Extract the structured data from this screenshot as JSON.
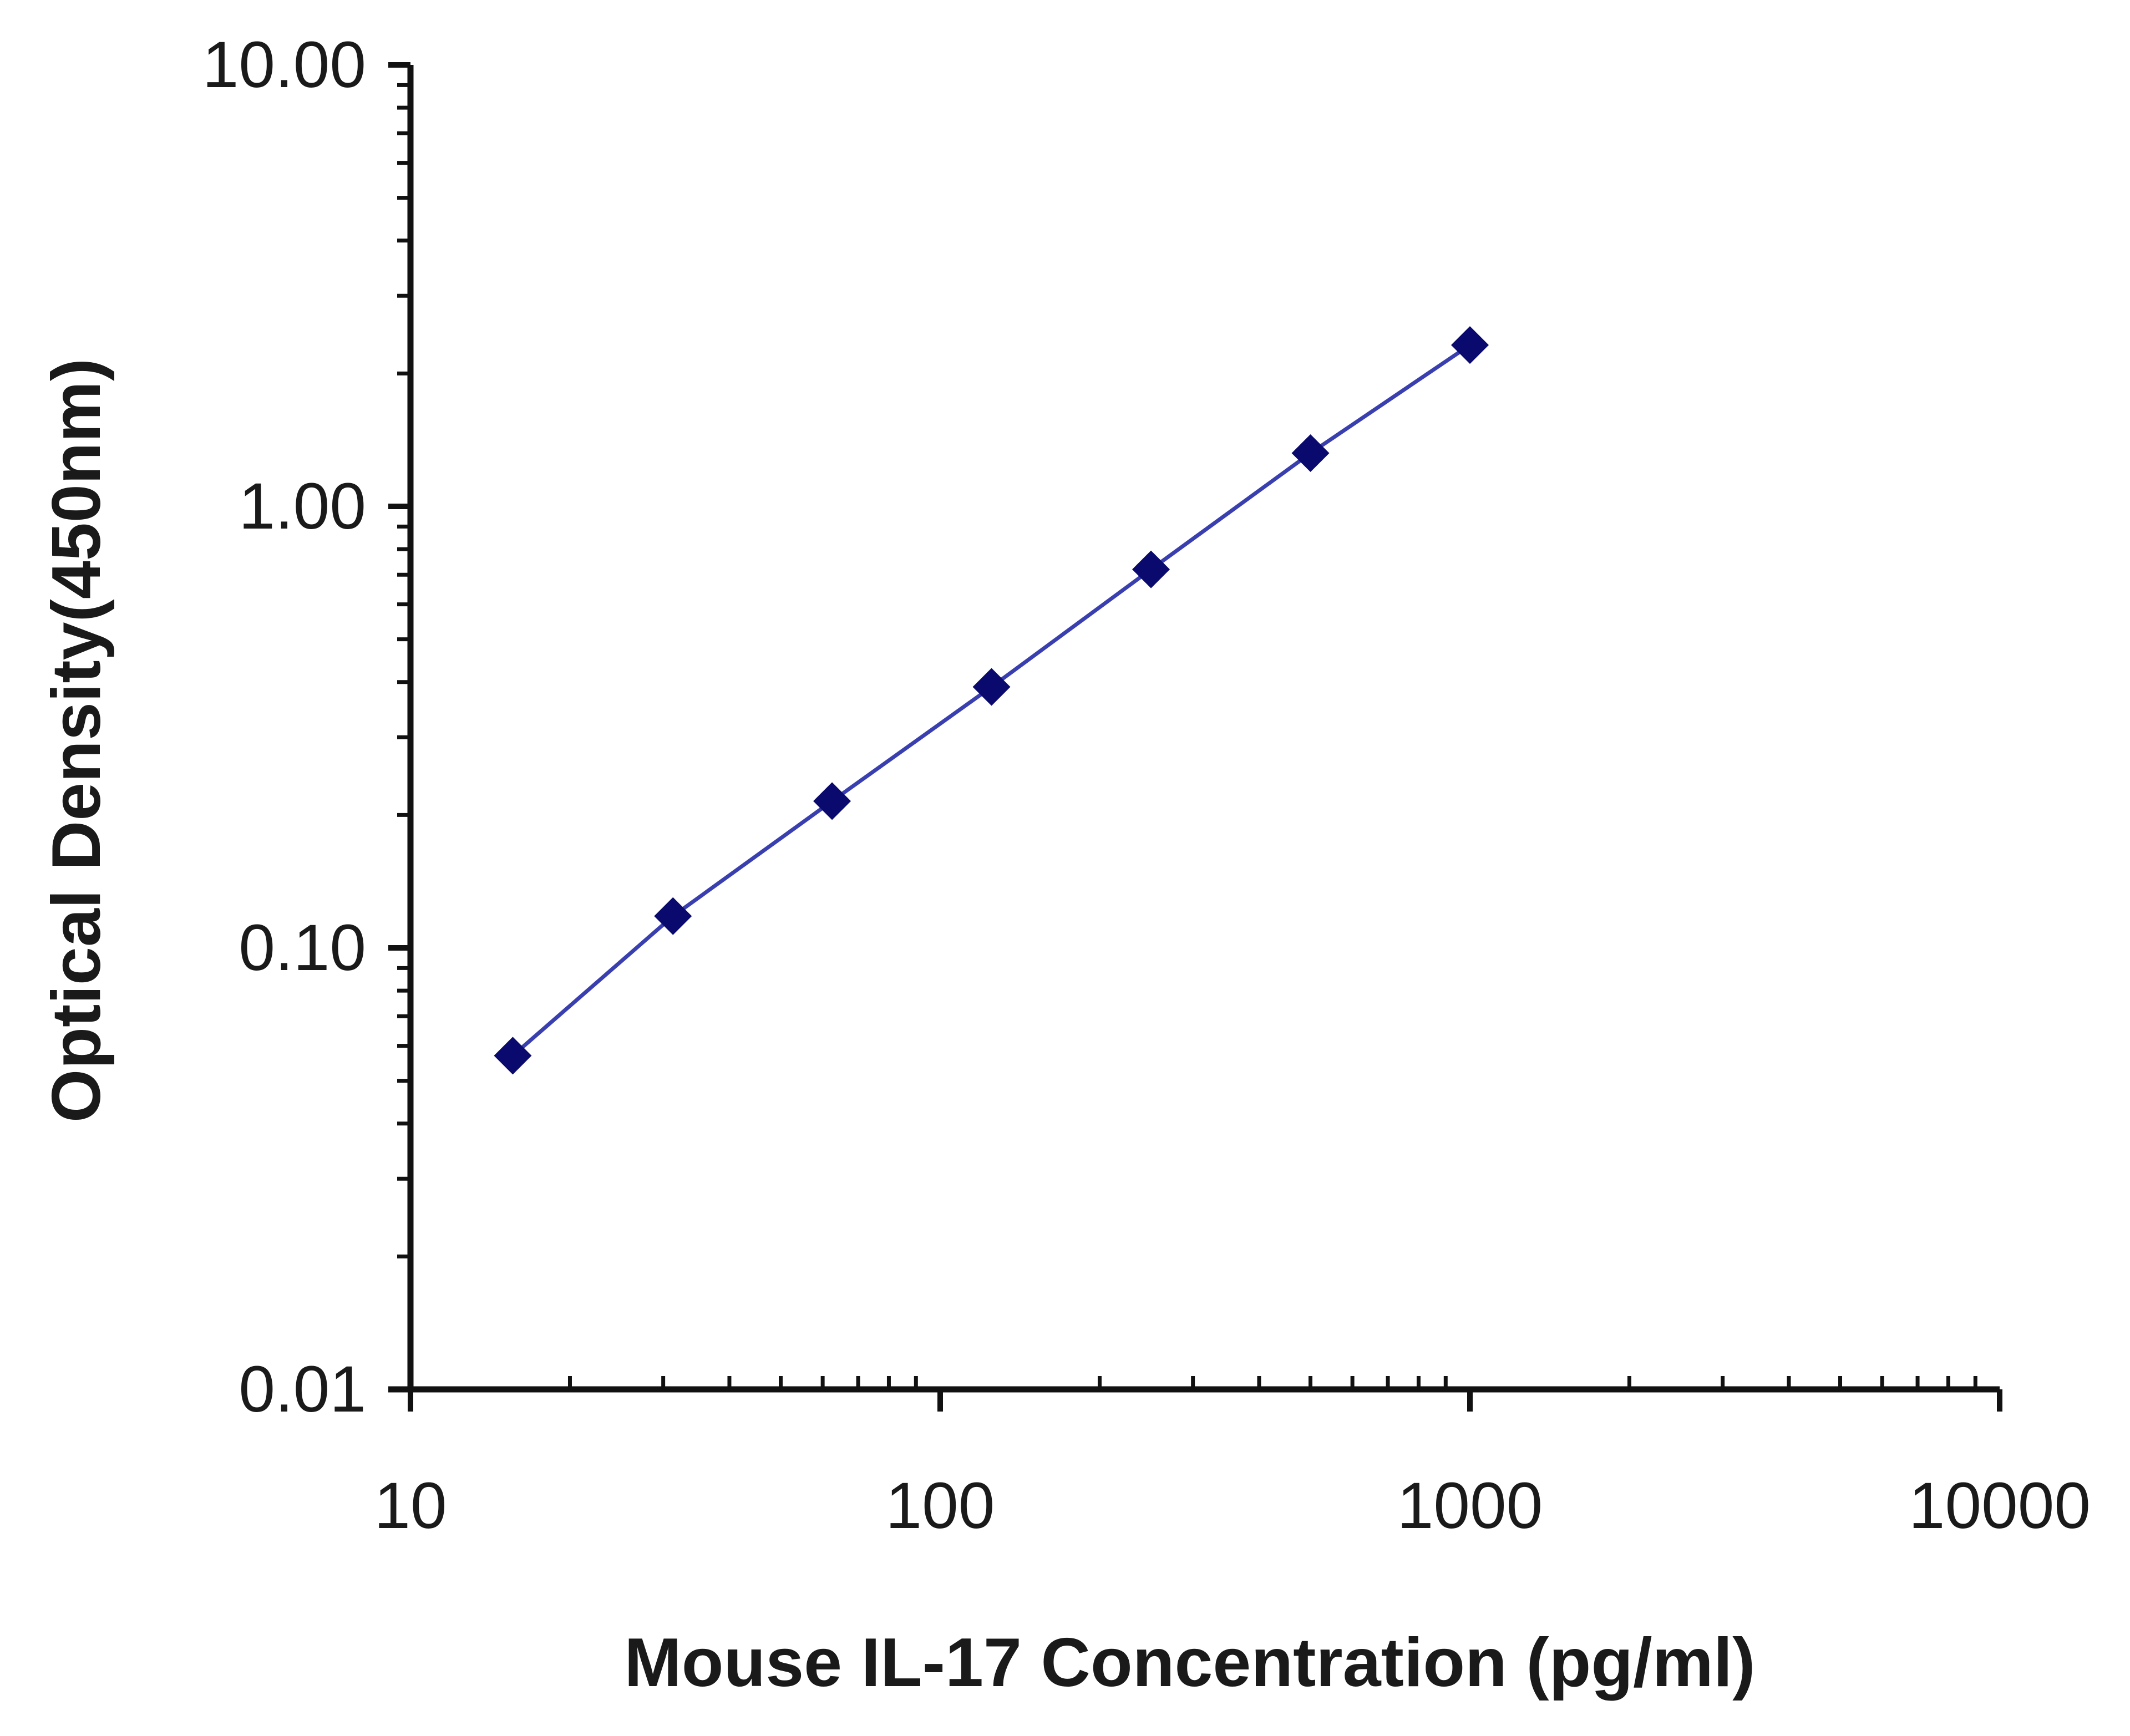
{
  "chart_data": {
    "type": "line",
    "title": "",
    "xlabel": "Mouse IL-17 Concentration (pg/ml)",
    "ylabel": "Optical Density(450nm)",
    "x_scale": "log",
    "y_scale": "log",
    "xlim": [
      10,
      10000
    ],
    "ylim": [
      0.01,
      10
    ],
    "x_ticks": [
      "10",
      "100",
      "1000",
      "10000"
    ],
    "y_ticks": [
      "10.00",
      "1.00",
      "0.10",
      "0.01"
    ],
    "grid": false,
    "legend": "none",
    "series": [
      {
        "x": [
          15.6,
          31.3,
          62.5,
          125,
          250,
          500,
          1000
        ],
        "y": [
          0.057,
          0.118,
          0.215,
          0.39,
          0.72,
          1.32,
          2.32
        ],
        "color": "#3a3fb0",
        "marker": "diamond",
        "marker_color": "#0a0a6e"
      }
    ]
  }
}
